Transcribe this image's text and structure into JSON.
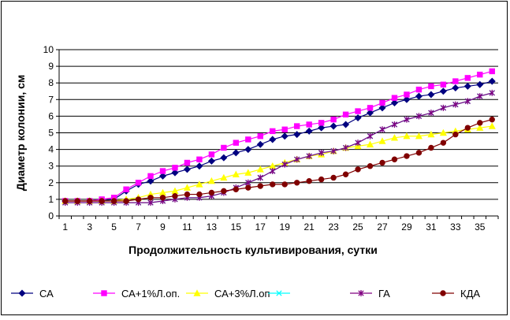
{
  "chart_data": {
    "type": "line",
    "title": "",
    "xlabel": "Продолжительность культивирования, сутки",
    "ylabel": "Диаметр колонии, см",
    "ylim": [
      0,
      10
    ],
    "yticks": [
      "0",
      "1",
      "2",
      "3",
      "4",
      "5",
      "6",
      "7",
      "8",
      "9",
      "10"
    ],
    "xticks": [
      "1",
      "3",
      "5",
      "7",
      "9",
      "11",
      "13",
      "15",
      "17",
      "19",
      "21",
      "23",
      "25",
      "27",
      "29",
      "31",
      "33",
      "35"
    ],
    "grid": "horizontal",
    "legend_position": "bottom",
    "x": [
      1,
      2,
      3,
      4,
      5,
      6,
      7,
      8,
      9,
      10,
      11,
      12,
      13,
      14,
      15,
      16,
      17,
      18,
      19,
      20,
      21,
      22,
      23,
      24,
      25,
      26,
      27,
      28,
      29,
      30,
      31,
      32,
      33,
      34,
      35,
      36
    ],
    "series": [
      {
        "name": "СА",
        "color": "#000080",
        "marker": "diamond",
        "values": [
          0.9,
          0.9,
          0.9,
          0.9,
          1.0,
          1.5,
          1.9,
          2.1,
          2.4,
          2.6,
          2.8,
          3.0,
          3.3,
          3.5,
          3.8,
          4.0,
          4.3,
          4.6,
          4.8,
          4.9,
          5.1,
          5.3,
          5.4,
          5.5,
          5.9,
          6.2,
          6.5,
          6.8,
          7.0,
          7.2,
          7.3,
          7.5,
          7.7,
          7.8,
          7.9,
          8.1
        ]
      },
      {
        "name": "СА+1%Л.оп.",
        "color": "#ff00ff",
        "marker": "square",
        "values": [
          0.9,
          0.9,
          0.9,
          1.0,
          1.1,
          1.6,
          2.0,
          2.4,
          2.7,
          2.9,
          3.2,
          3.4,
          3.7,
          4.1,
          4.4,
          4.6,
          4.8,
          5.1,
          5.2,
          5.4,
          5.5,
          5.6,
          5.8,
          6.1,
          6.3,
          6.5,
          6.8,
          7.1,
          7.3,
          7.6,
          7.8,
          7.9,
          8.1,
          8.3,
          8.5,
          8.7
        ]
      },
      {
        "name": "СА+3%Л.оп",
        "color": "#ffff00",
        "marker": "triangle",
        "values": [
          0.9,
          0.9,
          0.9,
          0.9,
          0.9,
          1.0,
          1.1,
          1.3,
          1.4,
          1.5,
          1.7,
          1.9,
          2.1,
          2.3,
          2.5,
          2.6,
          2.8,
          3.0,
          3.2,
          3.4,
          3.6,
          3.7,
          3.9,
          4.1,
          4.2,
          4.3,
          4.5,
          4.7,
          4.8,
          4.8,
          4.9,
          5.0,
          5.1,
          5.2,
          5.3,
          5.4
        ]
      },
      {
        "name": "",
        "color": "#00ffff",
        "marker": "x",
        "values": [
          0.8,
          0.8,
          0.8,
          0.8,
          0.8,
          0.8,
          0.8,
          0.8,
          0.9,
          1.0,
          1.1,
          1.1,
          1.2,
          1.4,
          1.7,
          2.0,
          2.3,
          2.7,
          3.1,
          3.4,
          3.6,
          3.8,
          3.9,
          4.1,
          4.4,
          4.8,
          5.2,
          5.5,
          5.8,
          6.0,
          6.2,
          6.5,
          6.7,
          6.9,
          7.2,
          7.4
        ]
      },
      {
        "name": "ГА",
        "color": "#800080",
        "marker": "asterisk",
        "values": [
          0.8,
          0.8,
          0.8,
          0.8,
          0.8,
          0.8,
          0.8,
          0.8,
          0.9,
          1.0,
          1.1,
          1.1,
          1.2,
          1.4,
          1.7,
          2.0,
          2.3,
          2.7,
          3.1,
          3.4,
          3.6,
          3.8,
          3.9,
          4.1,
          4.4,
          4.8,
          5.2,
          5.5,
          5.8,
          6.0,
          6.2,
          6.5,
          6.7,
          6.9,
          7.2,
          7.4
        ]
      },
      {
        "name": "КДА",
        "color": "#800000",
        "marker": "circle",
        "values": [
          0.9,
          0.9,
          0.9,
          0.9,
          0.9,
          0.9,
          1.0,
          1.1,
          1.1,
          1.2,
          1.3,
          1.3,
          1.4,
          1.5,
          1.6,
          1.7,
          1.8,
          1.9,
          1.9,
          2.0,
          2.1,
          2.2,
          2.3,
          2.5,
          2.8,
          3.0,
          3.2,
          3.4,
          3.6,
          3.8,
          4.1,
          4.4,
          4.9,
          5.3,
          5.6,
          5.8
        ]
      }
    ]
  }
}
